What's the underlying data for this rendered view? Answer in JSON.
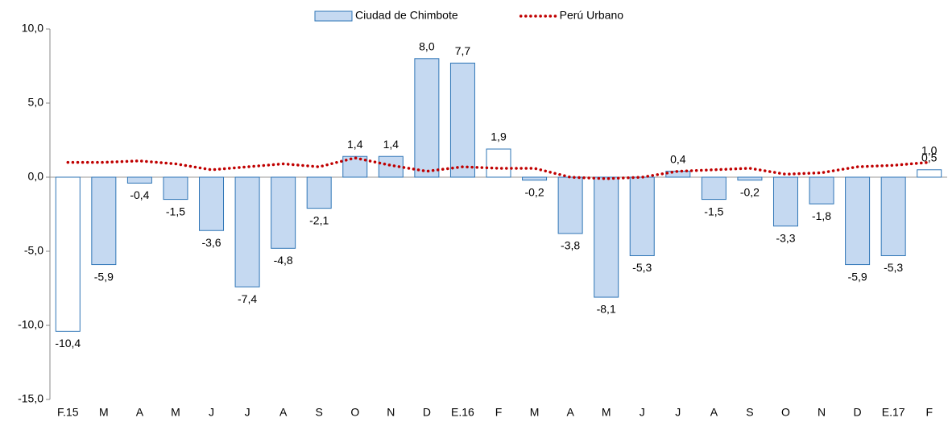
{
  "chart_data": {
    "type": "bar",
    "categories": [
      "F.15",
      "M",
      "A",
      "M",
      "J",
      "J",
      "A",
      "S",
      "O",
      "N",
      "D",
      "E.16",
      "F",
      "M",
      "A",
      "M",
      "J",
      "J",
      "A",
      "S",
      "O",
      "N",
      "D",
      "E.17",
      "F"
    ],
    "series": [
      {
        "name": "Ciudad de Chimbote",
        "type": "bar",
        "color": "#c5d9f1",
        "edgecolor": "#2e75b6",
        "colors": [
          "#ffffff",
          "#c5d9f1",
          "#c5d9f1",
          "#c5d9f1",
          "#c5d9f1",
          "#c5d9f1",
          "#c5d9f1",
          "#c5d9f1",
          "#c5d9f1",
          "#c5d9f1",
          "#c5d9f1",
          "#c5d9f1",
          "#ffffff",
          "#c5d9f1",
          "#c5d9f1",
          "#c5d9f1",
          "#c5d9f1",
          "#c5d9f1",
          "#c5d9f1",
          "#c5d9f1",
          "#c5d9f1",
          "#c5d9f1",
          "#c5d9f1",
          "#c5d9f1",
          "#ffffff"
        ],
        "values": [
          -10.4,
          -5.9,
          -0.4,
          -1.5,
          -3.6,
          -7.4,
          -4.8,
          -2.1,
          1.4,
          1.4,
          8.0,
          7.7,
          1.9,
          -0.2,
          -3.8,
          -8.1,
          -5.3,
          0.4,
          -1.5,
          -0.2,
          -3.3,
          -1.8,
          -5.9,
          -5.3,
          0.5
        ],
        "value_labels": [
          "-10,4",
          "-5,9",
          "-0,4",
          "-1,5",
          "-3,6",
          "-7,4",
          "-4,8",
          "-2,1",
          "1,4",
          "1,4",
          "8,0",
          "7,7",
          "1,9",
          "-0,2",
          "-3,8",
          "-8,1",
          "-5,3",
          "0,4",
          "-1,5",
          "-0,2",
          "-3,3",
          "-1,8",
          "-5,9",
          "-5,3",
          "0,5"
        ]
      },
      {
        "name": "Perú Urbano",
        "type": "line",
        "color": "#c00000",
        "style": "dotted",
        "values": [
          1.0,
          1.0,
          1.1,
          0.9,
          0.5,
          0.7,
          0.9,
          0.7,
          1.3,
          0.8,
          0.4,
          0.7,
          0.6,
          0.6,
          0.0,
          -0.1,
          0.0,
          0.4,
          0.5,
          0.6,
          0.2,
          0.3,
          0.7,
          0.8,
          1.0
        ],
        "value_labels": [
          null,
          null,
          null,
          null,
          null,
          null,
          null,
          null,
          null,
          null,
          null,
          null,
          null,
          null,
          null,
          null,
          null,
          null,
          null,
          null,
          null,
          null,
          null,
          null,
          "1,0"
        ]
      }
    ],
    "ylim": [
      -15,
      10
    ],
    "yticks": [
      {
        "value": -15,
        "label": "-15,0"
      },
      {
        "value": -10,
        "label": "-10,0"
      },
      {
        "value": -5,
        "label": "-5,0"
      },
      {
        "value": 0,
        "label": "0,0"
      },
      {
        "value": 5,
        "label": "5,0"
      },
      {
        "value": 10,
        "label": "10,0"
      }
    ],
    "legend": "top"
  }
}
